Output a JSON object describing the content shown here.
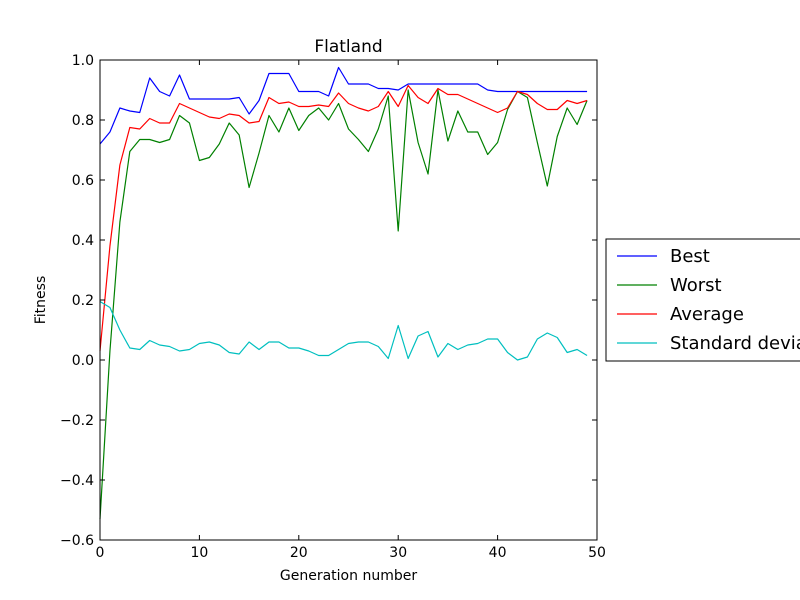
{
  "chart_data": {
    "type": "line",
    "title": "Flatland",
    "xlabel": "Generation number",
    "ylabel": "Fitness",
    "xlim": [
      0,
      50
    ],
    "ylim": [
      -0.6,
      1.0
    ],
    "xticks": [
      "0",
      "10",
      "20",
      "30",
      "40",
      "50"
    ],
    "yticks": [
      "−0.6",
      "−0.4",
      "−0.2",
      "0.0",
      "0.2",
      "0.4",
      "0.6",
      "0.8",
      "1.0"
    ],
    "grid": false,
    "legend_position": "right, outside plot",
    "x": [
      0,
      1,
      2,
      3,
      4,
      5,
      6,
      7,
      8,
      9,
      10,
      11,
      12,
      13,
      14,
      15,
      16,
      17,
      18,
      19,
      20,
      21,
      22,
      23,
      24,
      25,
      26,
      27,
      28,
      29,
      30,
      31,
      32,
      33,
      34,
      35,
      36,
      37,
      38,
      39,
      40,
      41,
      42,
      43,
      44,
      45,
      46,
      47,
      48,
      49
    ],
    "series": [
      {
        "name": "Best",
        "color": "#0000ff",
        "values": [
          0.72,
          0.76,
          0.84,
          0.83,
          0.825,
          0.94,
          0.895,
          0.88,
          0.95,
          0.87,
          0.87,
          0.87,
          0.87,
          0.87,
          0.875,
          0.82,
          0.865,
          0.955,
          0.955,
          0.955,
          0.895,
          0.895,
          0.895,
          0.88,
          0.975,
          0.92,
          0.92,
          0.92,
          0.905,
          0.905,
          0.9,
          0.92,
          0.92,
          0.92,
          0.92,
          0.92,
          0.92,
          0.92,
          0.92,
          0.9,
          0.895,
          0.895,
          0.895,
          0.895,
          0.895,
          0.895,
          0.895,
          0.895,
          0.895,
          0.895
        ]
      },
      {
        "name": "Worst",
        "color": "#008000",
        "values": [
          -0.53,
          0.03,
          0.46,
          0.695,
          0.735,
          0.735,
          0.725,
          0.735,
          0.815,
          0.79,
          0.665,
          0.675,
          0.72,
          0.79,
          0.75,
          0.575,
          0.69,
          0.815,
          0.76,
          0.84,
          0.765,
          0.815,
          0.84,
          0.8,
          0.855,
          0.77,
          0.735,
          0.695,
          0.77,
          0.88,
          0.43,
          0.9,
          0.725,
          0.62,
          0.9,
          0.73,
          0.83,
          0.76,
          0.76,
          0.685,
          0.725,
          0.835,
          0.895,
          0.875,
          0.725,
          0.58,
          0.745,
          0.84,
          0.785,
          0.865
        ]
      },
      {
        "name": "Average",
        "color": "#ff0000",
        "values": [
          0.03,
          0.38,
          0.65,
          0.775,
          0.77,
          0.805,
          0.79,
          0.79,
          0.855,
          0.84,
          0.825,
          0.81,
          0.805,
          0.82,
          0.815,
          0.79,
          0.795,
          0.875,
          0.855,
          0.86,
          0.845,
          0.845,
          0.85,
          0.845,
          0.89,
          0.855,
          0.84,
          0.83,
          0.845,
          0.895,
          0.845,
          0.915,
          0.875,
          0.855,
          0.905,
          0.885,
          0.885,
          0.87,
          0.855,
          0.84,
          0.825,
          0.84,
          0.895,
          0.885,
          0.855,
          0.835,
          0.835,
          0.865,
          0.855,
          0.865
        ]
      },
      {
        "name": "Standard deviation",
        "color": "#00bfbf",
        "values": [
          0.195,
          0.175,
          0.1,
          0.04,
          0.035,
          0.065,
          0.05,
          0.045,
          0.03,
          0.035,
          0.055,
          0.06,
          0.05,
          0.025,
          0.02,
          0.06,
          0.035,
          0.06,
          0.06,
          0.04,
          0.04,
          0.03,
          0.015,
          0.015,
          0.035,
          0.055,
          0.06,
          0.06,
          0.045,
          0.005,
          0.115,
          0.005,
          0.08,
          0.095,
          0.01,
          0.055,
          0.035,
          0.05,
          0.055,
          0.07,
          0.07,
          0.025,
          0.0,
          0.01,
          0.07,
          0.09,
          0.075,
          0.025,
          0.035,
          0.015
        ]
      }
    ]
  }
}
